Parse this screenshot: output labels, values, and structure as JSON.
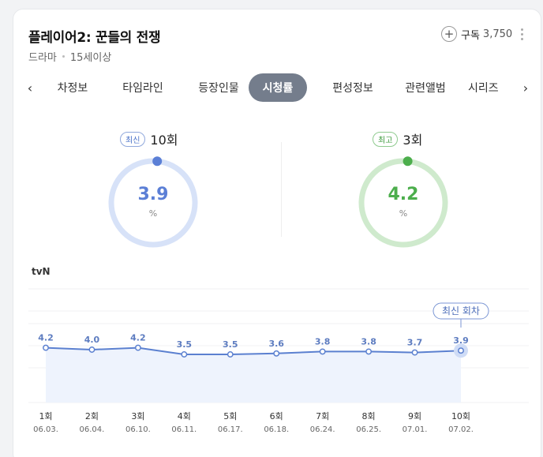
{
  "header": {
    "title": "플레이어2: 꾼들의 전쟁",
    "genre": "드라마",
    "rating": "15세이상",
    "subscribe_label": "구독",
    "subscribe_count": "3,750"
  },
  "tabs": [
    {
      "label": "차정보",
      "active": false
    },
    {
      "label": "타임라인",
      "active": false
    },
    {
      "label": "등장인물",
      "active": false
    },
    {
      "label": "시청률",
      "active": true
    },
    {
      "label": "편성정보",
      "active": false
    },
    {
      "label": "관련앨범",
      "active": false
    },
    {
      "label": "시리즈",
      "active": false
    }
  ],
  "latest": {
    "badge": "최신",
    "episode": "10회",
    "value": "3.9",
    "unit": "%",
    "fraction": 0.039,
    "color": "#5b7fd6",
    "track": "#d7e2f8"
  },
  "highest": {
    "badge": "최고",
    "episode": "3회",
    "value": "4.2",
    "unit": "%",
    "fraction": 0.042,
    "color": "#4cae4c",
    "track": "#cfeacd"
  },
  "channel": "tvN",
  "chart_data": {
    "type": "area",
    "categories": [
      "1회",
      "2회",
      "3회",
      "4회",
      "5회",
      "6회",
      "7회",
      "8회",
      "9회",
      "10회"
    ],
    "dates": [
      "06.03.",
      "06.04.",
      "06.10.",
      "06.11.",
      "06.17.",
      "06.18.",
      "06.24.",
      "06.25.",
      "07.01.",
      "07.02."
    ],
    "values": [
      4.2,
      4.0,
      4.2,
      3.5,
      3.5,
      3.6,
      3.8,
      3.8,
      3.7,
      3.9
    ],
    "labels": [
      "4.2",
      "4.0",
      "4.2",
      "3.5",
      "3.5",
      "3.6",
      "3.8",
      "3.8",
      "3.7",
      "3.9"
    ],
    "annotation": "최신 회차",
    "grid": true,
    "line_color": "#5b80d0",
    "fill_color": "#eef3fd"
  }
}
